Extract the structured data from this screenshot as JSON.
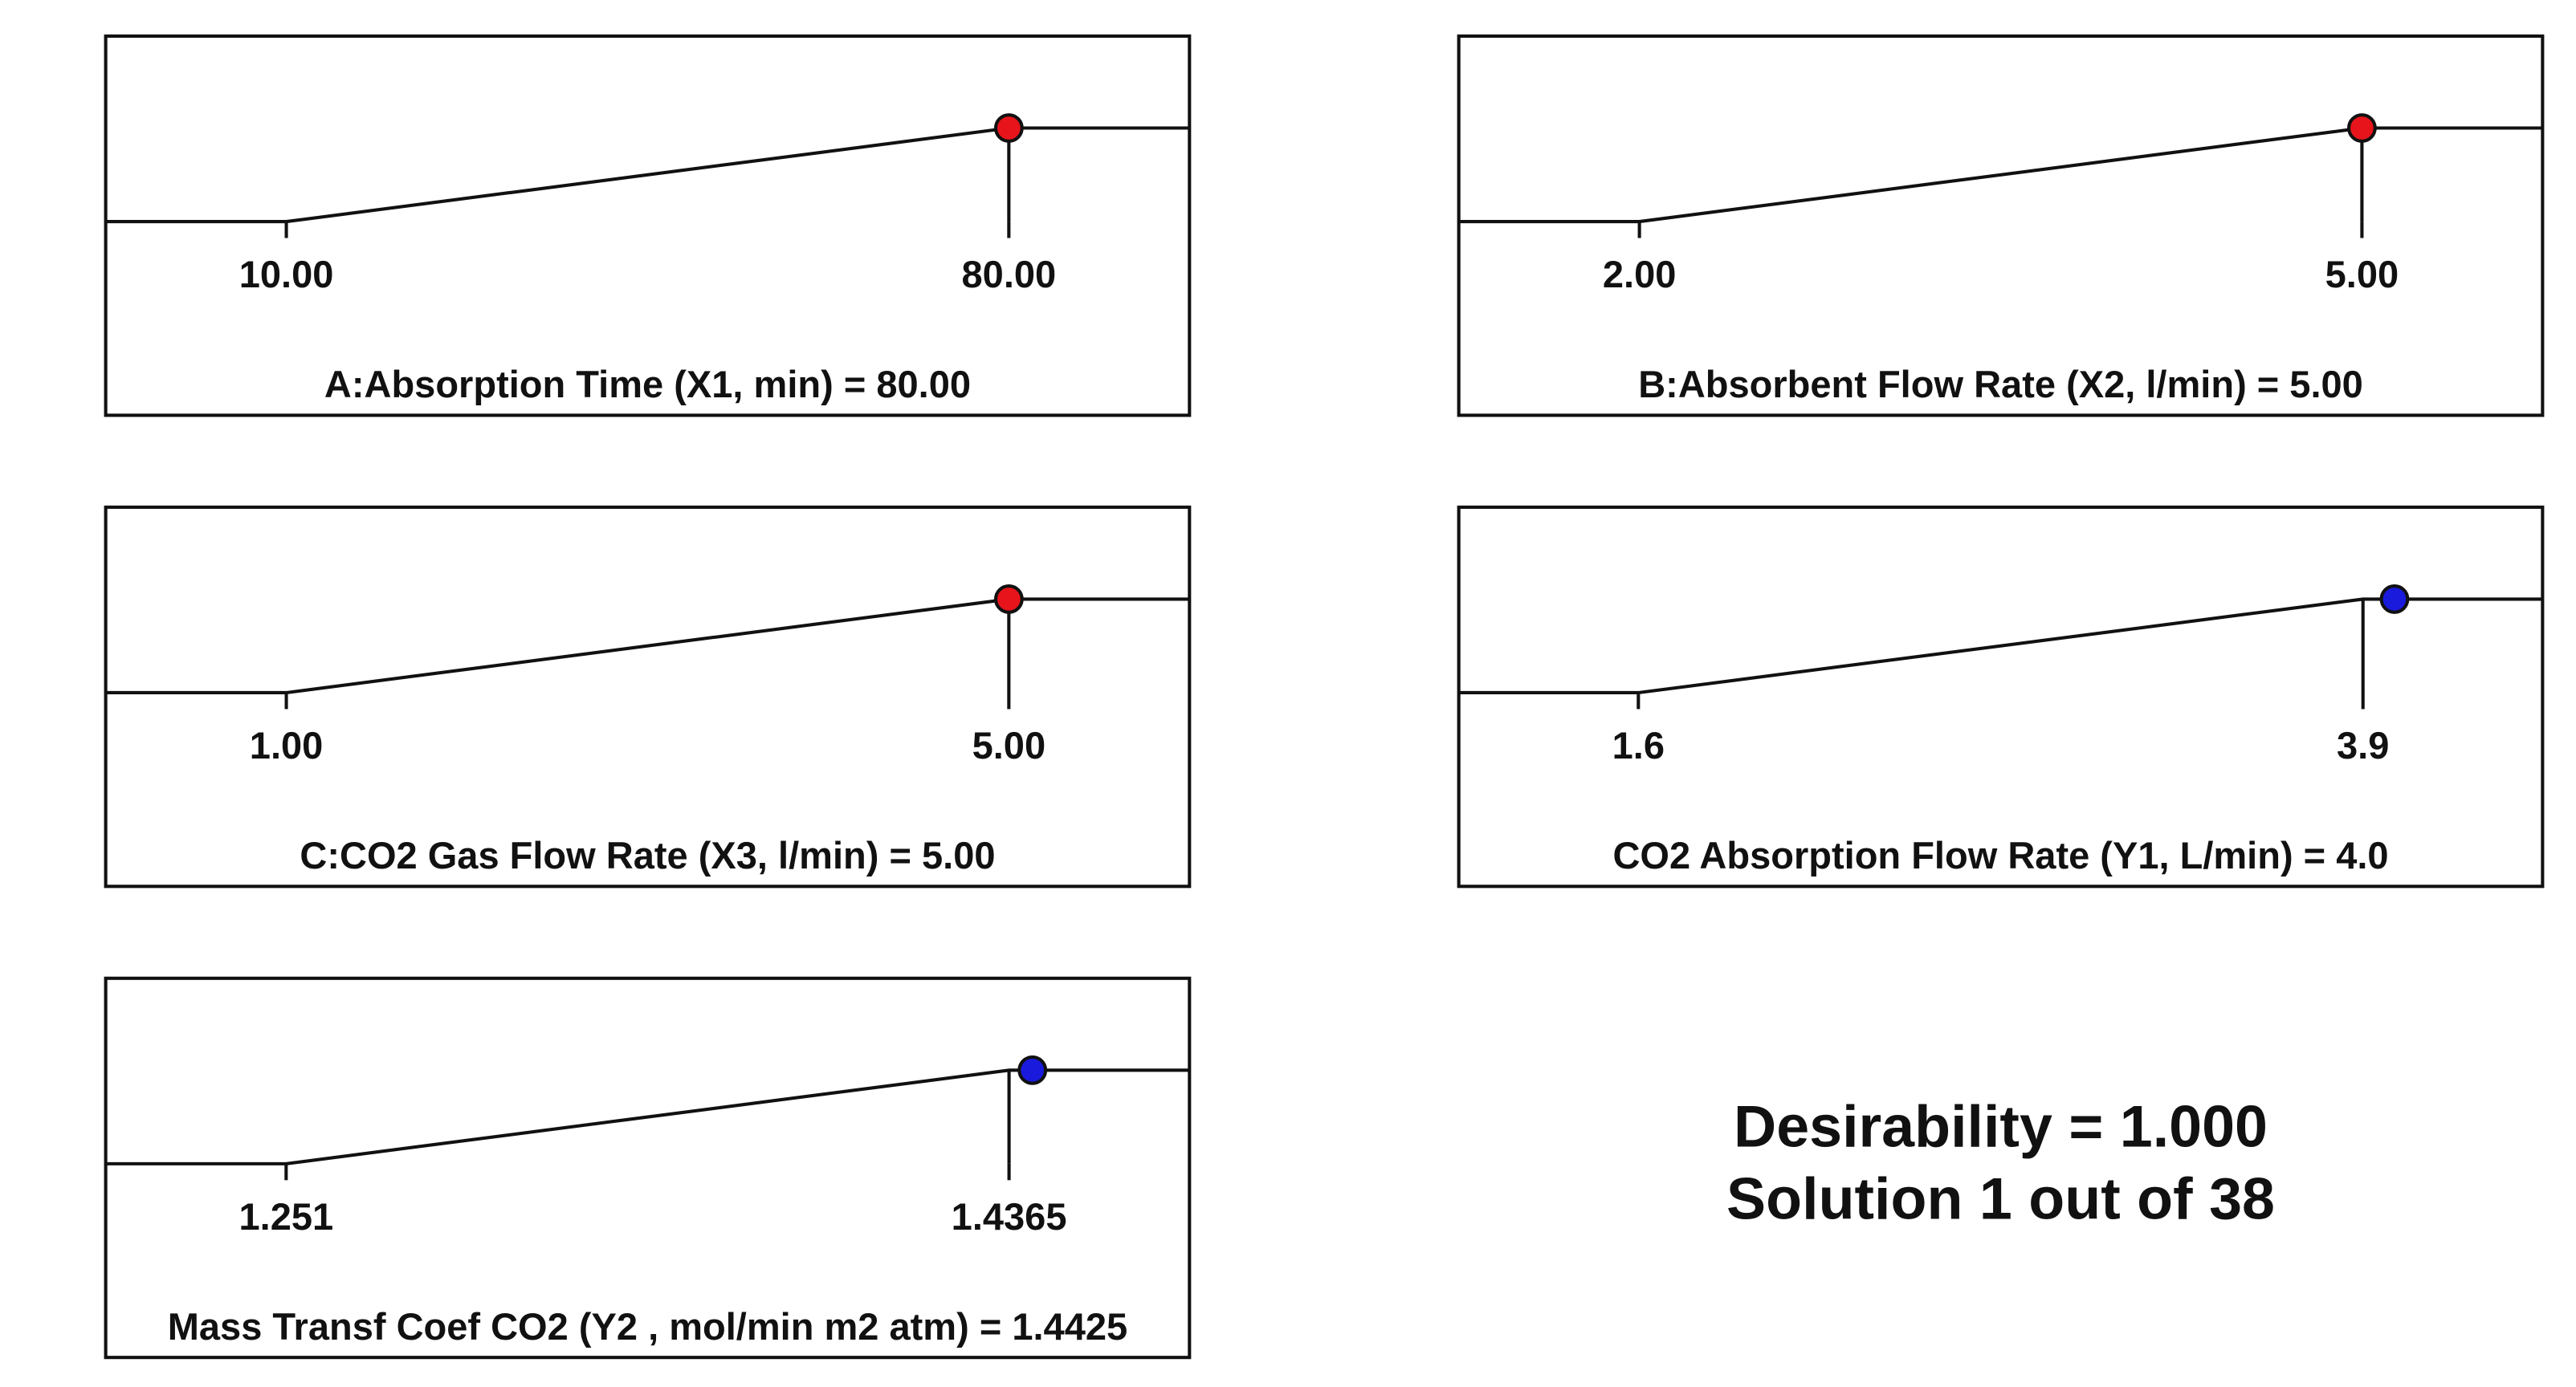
{
  "chart_data": [
    {
      "type": "ramp",
      "title": "A:Absorption Time (X1, min) = 80.00",
      "xlim": [
        -7.5,
        97.5
      ],
      "xticks": [
        {
          "value": 10,
          "label": "10.00"
        },
        {
          "value": 80,
          "label": "80.00"
        }
      ],
      "value": 80,
      "color": "#e8141b"
    },
    {
      "type": "ramp",
      "title": "B:Absorbent Flow Rate (X2, l/min)  = 5.00",
      "xlim": [
        1.25,
        5.75
      ],
      "xticks": [
        {
          "value": 2,
          "label": "2.00"
        },
        {
          "value": 5,
          "label": "5.00"
        }
      ],
      "value": 5,
      "color": "#e8141b"
    },
    {
      "type": "ramp",
      "title": "C:CO2 Gas Flow Rate (X3, l/min)  = 5.00",
      "xlim": [
        0,
        6
      ],
      "xticks": [
        {
          "value": 1,
          "label": "1.00"
        },
        {
          "value": 5,
          "label": "5.00"
        }
      ],
      "value": 5,
      "color": "#e8141b"
    },
    {
      "type": "ramp",
      "title": "CO2 Absorption Flow Rate (Y1, L/min) = 4.0",
      "xlim": [
        1.03,
        4.47
      ],
      "xticks": [
        1.6,
        3.9
      ],
      "value": 4.0,
      "color": "#1a1adc"
    },
    {
      "type": "ramp",
      "title": "Mass Transf Coef CO2  (Y2 , mol/min m2 atm) = 1.4425",
      "xlim": [
        1.2047,
        1.4828
      ],
      "xticks": [
        1.251,
        1.4365
      ],
      "value": 1.4425,
      "color": "#1a1adc"
    }
  ],
  "summary": [
    "Desirability = 1.000",
    "Solution 1 out of 38"
  ]
}
